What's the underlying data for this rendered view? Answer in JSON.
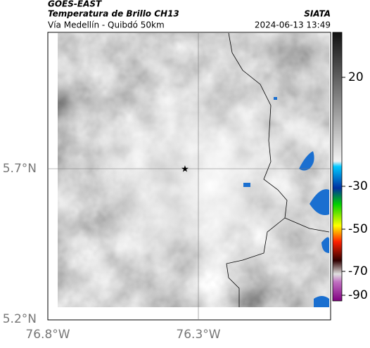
{
  "header": {
    "satellite": "GOES-EAST",
    "product": "Temperatura de Brillo CH13",
    "source": "SIATA",
    "region": "Vía Medellín - Quibdó 50km",
    "timestamp": "2024-06-13 13:49"
  },
  "axes": {
    "lat_labels": [
      "5.7°N",
      "5.2°N"
    ],
    "lon_labels": [
      "76.8°W",
      "76.3°W"
    ]
  },
  "colorbar": {
    "ticks": [
      20,
      -30,
      -50,
      -70,
      -90
    ]
  }
}
